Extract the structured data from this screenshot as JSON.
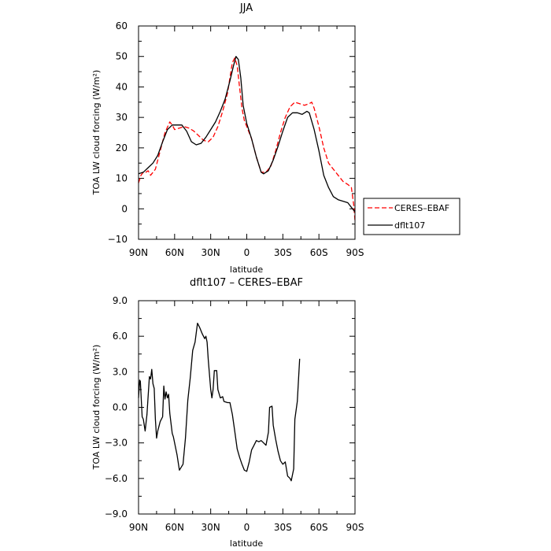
{
  "chart_data": [
    {
      "type": "line",
      "title": "JJA",
      "xlabel": "latitude",
      "ylabel": "TOA LW cloud forcing (W/m²)",
      "xlim": [
        90,
        -90
      ],
      "ylim": [
        -10,
        60
      ],
      "x_ticks": [
        "90N",
        "60N",
        "30N",
        "0",
        "30S",
        "60S",
        "90S"
      ],
      "y_ticks": [
        "60",
        "50",
        "40",
        "30",
        "20",
        "10",
        "0",
        "−10"
      ],
      "legend_position": "right",
      "series": [
        {
          "name": "CERES–EBAF",
          "color": "#ff0000",
          "dash": "dashed",
          "points": [
            [
              90,
              8.5
            ],
            [
              88,
              11
            ],
            [
              86,
              12
            ],
            [
              84,
              12
            ],
            [
              82,
              12.5
            ],
            [
              80,
              11
            ],
            [
              76,
              13
            ],
            [
              72,
              19
            ],
            [
              68,
              25
            ],
            [
              64,
              28.5
            ],
            [
              62,
              27.5
            ],
            [
              60,
              26
            ],
            [
              56,
              26.5
            ],
            [
              52,
              27
            ],
            [
              48,
              26.5
            ],
            [
              44,
              25.5
            ],
            [
              40,
              24
            ],
            [
              36,
              22.5
            ],
            [
              32,
              22
            ],
            [
              28,
              23.5
            ],
            [
              24,
              27
            ],
            [
              20,
              32
            ],
            [
              16,
              38
            ],
            [
              14,
              43
            ],
            [
              12,
              48
            ],
            [
              10,
              49.5
            ],
            [
              8,
              47
            ],
            [
              6,
              40
            ],
            [
              4,
              33
            ],
            [
              2,
              29
            ],
            [
              0,
              27
            ],
            [
              -4,
              23
            ],
            [
              -8,
              17
            ],
            [
              -12,
              12
            ],
            [
              -16,
              12
            ],
            [
              -20,
              14
            ],
            [
              -24,
              19
            ],
            [
              -28,
              25
            ],
            [
              -32,
              30
            ],
            [
              -36,
              33.5
            ],
            [
              -40,
              35
            ],
            [
              -44,
              34.5
            ],
            [
              -48,
              34
            ],
            [
              -52,
              34.5
            ],
            [
              -54,
              35
            ],
            [
              -56,
              33
            ],
            [
              -60,
              27
            ],
            [
              -64,
              20
            ],
            [
              -68,
              15
            ],
            [
              -72,
              13
            ],
            [
              -76,
              11
            ],
            [
              -80,
              9
            ],
            [
              -84,
              8
            ],
            [
              -87,
              7
            ],
            [
              -89,
              1
            ],
            [
              -90,
              -4
            ]
          ]
        },
        {
          "name": "dflt107",
          "color": "#000000",
          "dash": "solid",
          "points": [
            [
              90,
              11.5
            ],
            [
              86,
              12
            ],
            [
              82,
              13.5
            ],
            [
              78,
              15
            ],
            [
              74,
              17.5
            ],
            [
              70,
              22
            ],
            [
              66,
              26
            ],
            [
              62,
              27.5
            ],
            [
              58,
              27.5
            ],
            [
              54,
              27.5
            ],
            [
              50,
              25.5
            ],
            [
              46,
              22
            ],
            [
              42,
              21
            ],
            [
              38,
              21.5
            ],
            [
              34,
              23.5
            ],
            [
              30,
              26
            ],
            [
              26,
              28.5
            ],
            [
              22,
              32
            ],
            [
              18,
              36
            ],
            [
              14,
              42
            ],
            [
              11,
              47
            ],
            [
              9,
              50
            ],
            [
              7,
              49
            ],
            [
              5,
              43
            ],
            [
              3,
              34
            ],
            [
              0,
              28
            ],
            [
              -4,
              23
            ],
            [
              -8,
              17
            ],
            [
              -12,
              12
            ],
            [
              -14,
              11.5
            ],
            [
              -18,
              12.5
            ],
            [
              -22,
              16
            ],
            [
              -26,
              20.5
            ],
            [
              -30,
              25.5
            ],
            [
              -34,
              30
            ],
            [
              -38,
              31.5
            ],
            [
              -42,
              31.5
            ],
            [
              -46,
              31
            ],
            [
              -50,
              32
            ],
            [
              -52,
              31.5
            ],
            [
              -56,
              26
            ],
            [
              -60,
              19
            ],
            [
              -64,
              11
            ],
            [
              -68,
              7
            ],
            [
              -72,
              4
            ],
            [
              -76,
              3
            ],
            [
              -80,
              2.5
            ],
            [
              -84,
              2
            ],
            [
              -88,
              0
            ],
            [
              -90,
              -1
            ]
          ]
        }
      ]
    },
    {
      "type": "line",
      "title": "dflt107 – CERES–EBAF",
      "xlabel": "latitude",
      "ylabel": "TOA LW cloud forcing (W/m²)",
      "xlim": [
        90,
        -90
      ],
      "ylim": [
        -9,
        9
      ],
      "x_ticks": [
        "90N",
        "60N",
        "30N",
        "0",
        "30S",
        "60S",
        "90S"
      ],
      "y_ticks": [
        "9.0",
        "6.0",
        "3.0",
        "0.0",
        "−3.0",
        "−6.0",
        "−9.0"
      ],
      "series": [
        {
          "color": "#000000",
          "dash": "solid",
          "points": [
            [
              90,
              0.8
            ],
            [
              89,
              2.3
            ],
            [
              88.5,
              2.2
            ],
            [
              87,
              -0.8
            ],
            [
              86,
              -1
            ],
            [
              84.5,
              -2
            ],
            [
              83,
              -0.6
            ],
            [
              81,
              2.6
            ],
            [
              80,
              2.4
            ],
            [
              79,
              3.2
            ],
            [
              78,
              2
            ],
            [
              77,
              1.6
            ],
            [
              76,
              -1
            ],
            [
              75,
              -2.6
            ],
            [
              74,
              -2
            ],
            [
              72,
              -1.2
            ],
            [
              70,
              -0.8
            ],
            [
              69,
              1.8
            ],
            [
              68,
              0.7
            ],
            [
              67,
              1.3
            ],
            [
              66,
              0.8
            ],
            [
              65,
              1.1
            ],
            [
              64,
              -0.5
            ],
            [
              62,
              -2.2
            ],
            [
              61,
              -2.5
            ],
            [
              58,
              -4
            ],
            [
              56,
              -5.3
            ],
            [
              53,
              -4.8
            ],
            [
              51,
              -2.6
            ],
            [
              49,
              0.6
            ],
            [
              47,
              2.5
            ],
            [
              45,
              4.8
            ],
            [
              43,
              5.5
            ],
            [
              41,
              7.1
            ],
            [
              39,
              6.7
            ],
            [
              37,
              6.2
            ],
            [
              35,
              5.8
            ],
            [
              34,
              6
            ],
            [
              33,
              5.5
            ],
            [
              32,
              4
            ],
            [
              30,
              1.5
            ],
            [
              29,
              0.8
            ],
            [
              28,
              1.5
            ],
            [
              27,
              3.1
            ],
            [
              25,
              3.1
            ],
            [
              24,
              1.5
            ],
            [
              22,
              0.8
            ],
            [
              20,
              0.9
            ],
            [
              19,
              0.5
            ],
            [
              16,
              0.4
            ],
            [
              14,
              0.4
            ],
            [
              12,
              -0.6
            ],
            [
              10,
              -2
            ],
            [
              8,
              -3.5
            ],
            [
              6,
              -4.2
            ],
            [
              4,
              -4.8
            ],
            [
              2,
              -5.3
            ],
            [
              0,
              -5.4
            ],
            [
              -2,
              -4.6
            ],
            [
              -4,
              -3.6
            ],
            [
              -6,
              -3.2
            ],
            [
              -8,
              -2.8
            ],
            [
              -10,
              -2.9
            ],
            [
              -12,
              -2.8
            ],
            [
              -14,
              -3
            ],
            [
              -16,
              -3.2
            ],
            [
              -18,
              -2.1
            ],
            [
              -19,
              0
            ],
            [
              -21,
              0.1
            ],
            [
              -22,
              -1.5
            ],
            [
              -24,
              -2.7
            ],
            [
              -26,
              -3.7
            ],
            [
              -28,
              -4.5
            ],
            [
              -30,
              -4.8
            ],
            [
              -32,
              -4.6
            ],
            [
              -34,
              -5.8
            ],
            [
              -36,
              -6
            ],
            [
              -37,
              -6.2
            ],
            [
              -39,
              -5.2
            ],
            [
              -40,
              -1
            ],
            [
              -42,
              0.5
            ],
            [
              -44,
              4.1
            ]
          ]
        }
      ]
    }
  ]
}
